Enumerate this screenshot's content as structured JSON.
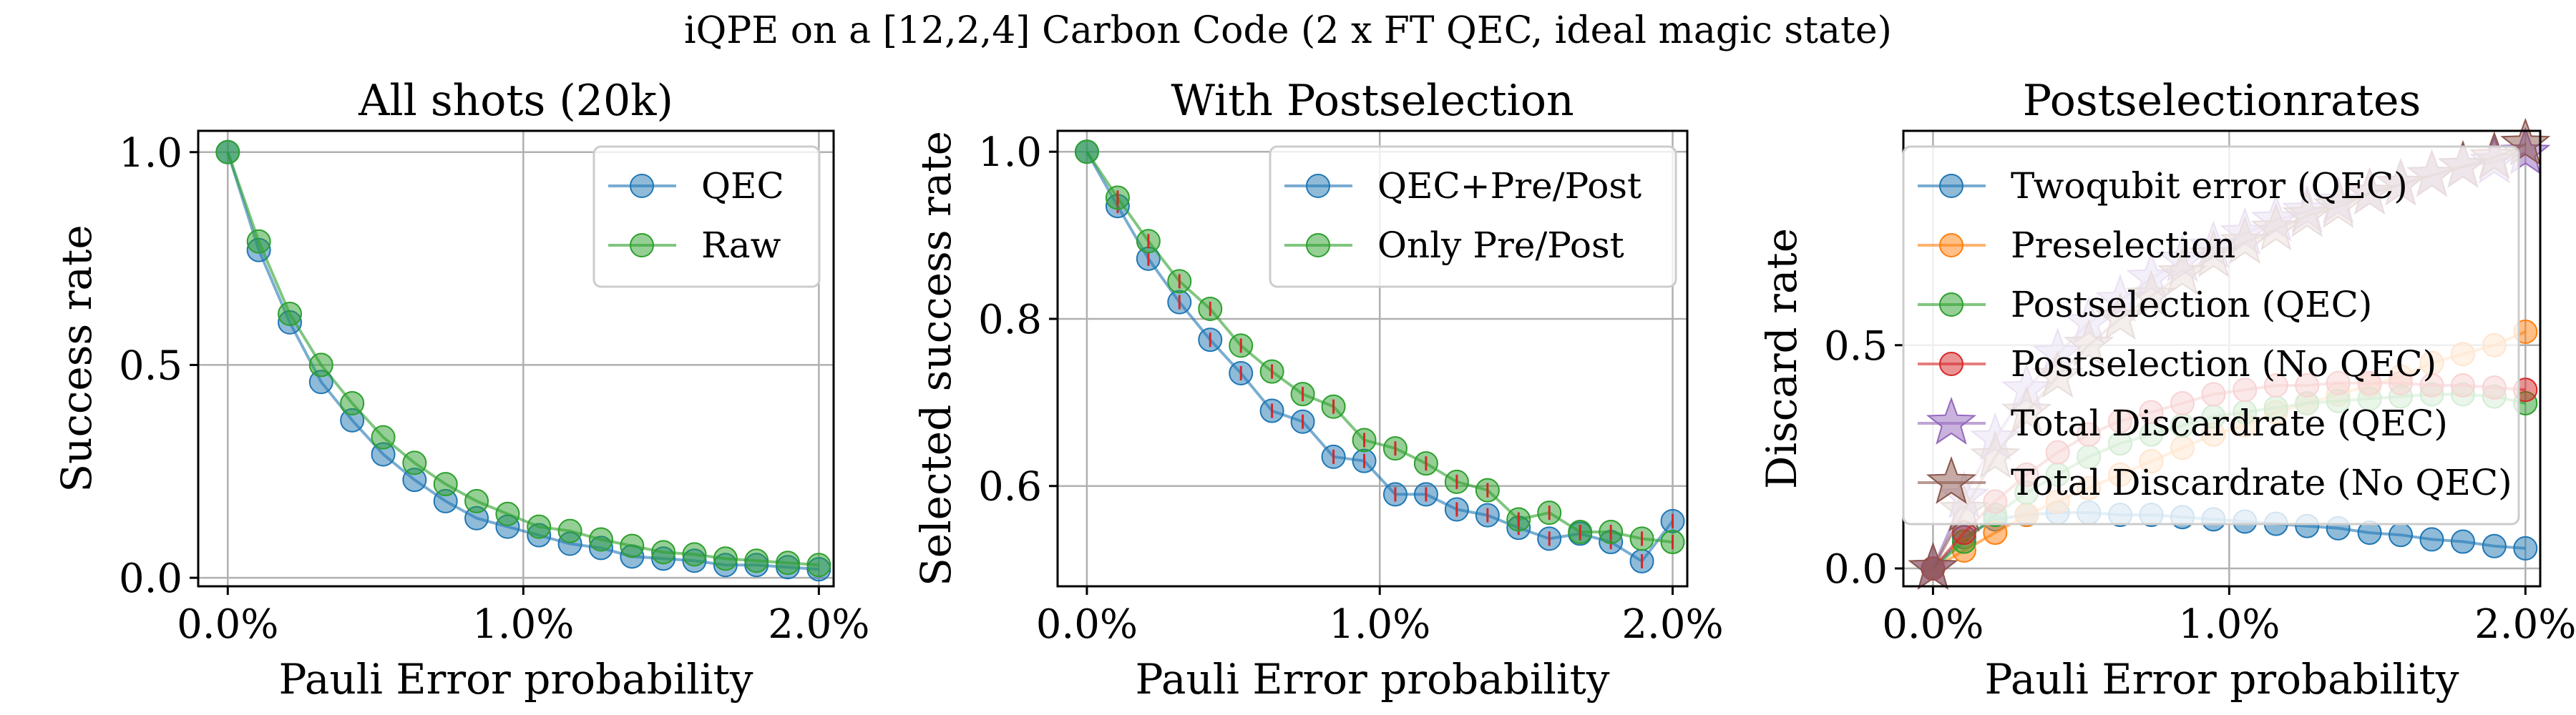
{
  "figure": {
    "suptitle": "iQPE on a [12,2,4] Carbon Code (2 x FT QEC, ideal magic state)"
  },
  "colors": {
    "blue": "#1f77b4",
    "orange": "#ff7f0e",
    "green": "#2ca02c",
    "red": "#d62728",
    "purple": "#9467bd",
    "brown": "#8c564b"
  },
  "chart_data": [
    {
      "type": "line",
      "title": "All shots (20k)",
      "xlabel": "Pauli Error probability",
      "ylabel": "Success rate",
      "xlim": [
        -0.001,
        0.0205
      ],
      "ylim": [
        -0.02,
        1.05
      ],
      "xticks": [
        0,
        0.01,
        0.02
      ],
      "xtick_labels": [
        "0.0%",
        "1.0%",
        "2.0%"
      ],
      "yticks": [
        0,
        0.5,
        1.0
      ],
      "ytick_labels": [
        "0.0",
        "0.5",
        "1.0"
      ],
      "grid": true,
      "legend": "top-right",
      "x": [
        0,
        0.00105,
        0.0021,
        0.00316,
        0.00421,
        0.00526,
        0.00632,
        0.00737,
        0.00842,
        0.00947,
        0.01053,
        0.01158,
        0.01263,
        0.01368,
        0.01474,
        0.01579,
        0.01684,
        0.01789,
        0.01895,
        0.02
      ],
      "series": [
        {
          "name": "QEC",
          "color": "#1f77b4",
          "marker": "circle",
          "values": [
            1.0,
            0.77,
            0.6,
            0.46,
            0.37,
            0.29,
            0.23,
            0.18,
            0.14,
            0.12,
            0.1,
            0.08,
            0.07,
            0.05,
            0.045,
            0.04,
            0.03,
            0.03,
            0.025,
            0.02
          ]
        },
        {
          "name": "Raw",
          "color": "#2ca02c",
          "marker": "circle",
          "values": [
            1.0,
            0.79,
            0.62,
            0.5,
            0.41,
            0.33,
            0.27,
            0.22,
            0.18,
            0.15,
            0.12,
            0.11,
            0.09,
            0.075,
            0.06,
            0.055,
            0.045,
            0.04,
            0.035,
            0.03
          ]
        }
      ]
    },
    {
      "type": "line",
      "title": "With Postselection",
      "xlabel": "Pauli Error probability",
      "ylabel": "Selected success rate",
      "xlim": [
        -0.001,
        0.0205
      ],
      "ylim": [
        0.48,
        1.025
      ],
      "xticks": [
        0,
        0.01,
        0.02
      ],
      "xtick_labels": [
        "0.0%",
        "1.0%",
        "2.0%"
      ],
      "yticks": [
        0.6,
        0.8,
        1.0
      ],
      "ytick_labels": [
        "0.6",
        "0.8",
        "1.0"
      ],
      "grid": true,
      "legend": "top-right",
      "error_bars": true,
      "x": [
        0,
        0.00105,
        0.0021,
        0.00316,
        0.00421,
        0.00526,
        0.00632,
        0.00737,
        0.00842,
        0.00947,
        0.01053,
        0.01158,
        0.01263,
        0.01368,
        0.01474,
        0.01579,
        0.01684,
        0.01789,
        0.01895,
        0.02
      ],
      "series": [
        {
          "name": "QEC+Pre/Post",
          "color": "#1f77b4",
          "marker": "circle",
          "values": [
            1.0,
            0.935,
            0.872,
            0.82,
            0.775,
            0.735,
            0.69,
            0.677,
            0.635,
            0.63,
            0.59,
            0.59,
            0.572,
            0.565,
            0.55,
            0.537,
            0.543,
            0.533,
            0.51,
            0.558
          ]
        },
        {
          "name": "Only Pre/Post",
          "color": "#2ca02c",
          "marker": "circle",
          "values": [
            1.0,
            0.945,
            0.893,
            0.845,
            0.812,
            0.768,
            0.737,
            0.71,
            0.695,
            0.655,
            0.645,
            0.627,
            0.605,
            0.595,
            0.56,
            0.568,
            0.545,
            0.545,
            0.537,
            0.533
          ]
        }
      ]
    },
    {
      "type": "line",
      "title": "Postselectionrates",
      "xlabel": "Pauli Error probability",
      "ylabel": "Discard rate",
      "xlim": [
        -0.001,
        0.0205
      ],
      "ylim": [
        -0.04,
        0.98
      ],
      "xticks": [
        0,
        0.01,
        0.02
      ],
      "xtick_labels": [
        "0.0%",
        "1.0%",
        "2.0%"
      ],
      "yticks": [
        0,
        0.5
      ],
      "ytick_labels": [
        "0.0",
        "0.5"
      ],
      "grid": true,
      "legend": "upper-left",
      "x": [
        0,
        0.00105,
        0.0021,
        0.00316,
        0.00421,
        0.00526,
        0.00632,
        0.00737,
        0.00842,
        0.00947,
        0.01053,
        0.01158,
        0.01263,
        0.01368,
        0.01474,
        0.01579,
        0.01684,
        0.01789,
        0.01895,
        0.02
      ],
      "series": [
        {
          "name": "Twoqubit error (QEC)",
          "color": "#1f77b4",
          "marker": "circle",
          "values": [
            0,
            0.07,
            0.11,
            0.12,
            0.125,
            0.125,
            0.12,
            0.12,
            0.115,
            0.11,
            0.105,
            0.1,
            0.095,
            0.09,
            0.08,
            0.075,
            0.065,
            0.06,
            0.05,
            0.045
          ]
        },
        {
          "name": "Preselection",
          "color": "#ff7f0e",
          "marker": "circle",
          "values": [
            0,
            0.04,
            0.08,
            0.12,
            0.15,
            0.18,
            0.21,
            0.24,
            0.27,
            0.3,
            0.32,
            0.35,
            0.37,
            0.39,
            0.41,
            0.43,
            0.46,
            0.48,
            0.5,
            0.53
          ]
        },
        {
          "name": "Postselection (QEC)",
          "color": "#2ca02c",
          "marker": "circle",
          "values": [
            0,
            0.06,
            0.12,
            0.17,
            0.21,
            0.25,
            0.28,
            0.3,
            0.32,
            0.34,
            0.35,
            0.36,
            0.37,
            0.375,
            0.38,
            0.385,
            0.39,
            0.39,
            0.385,
            0.37
          ]
        },
        {
          "name": "Postselection (No QEC)",
          "color": "#d62728",
          "marker": "circle",
          "values": [
            0,
            0.08,
            0.15,
            0.21,
            0.26,
            0.3,
            0.33,
            0.35,
            0.37,
            0.39,
            0.4,
            0.41,
            0.41,
            0.415,
            0.415,
            0.415,
            0.41,
            0.41,
            0.405,
            0.4
          ]
        },
        {
          "name": "Total Discardrate (QEC)",
          "color": "#9467bd",
          "marker": "star",
          "values": [
            0,
            0.16,
            0.29,
            0.4,
            0.48,
            0.55,
            0.6,
            0.65,
            0.69,
            0.72,
            0.75,
            0.78,
            0.8,
            0.82,
            0.84,
            0.86,
            0.88,
            0.9,
            0.91,
            0.93
          ]
        },
        {
          "name": "Total Discardrate (No QEC)",
          "color": "#8c564b",
          "marker": "star",
          "values": [
            0,
            0.13,
            0.25,
            0.35,
            0.43,
            0.5,
            0.56,
            0.61,
            0.66,
            0.7,
            0.73,
            0.76,
            0.79,
            0.81,
            0.84,
            0.86,
            0.88,
            0.9,
            0.92,
            0.95
          ]
        }
      ]
    }
  ]
}
